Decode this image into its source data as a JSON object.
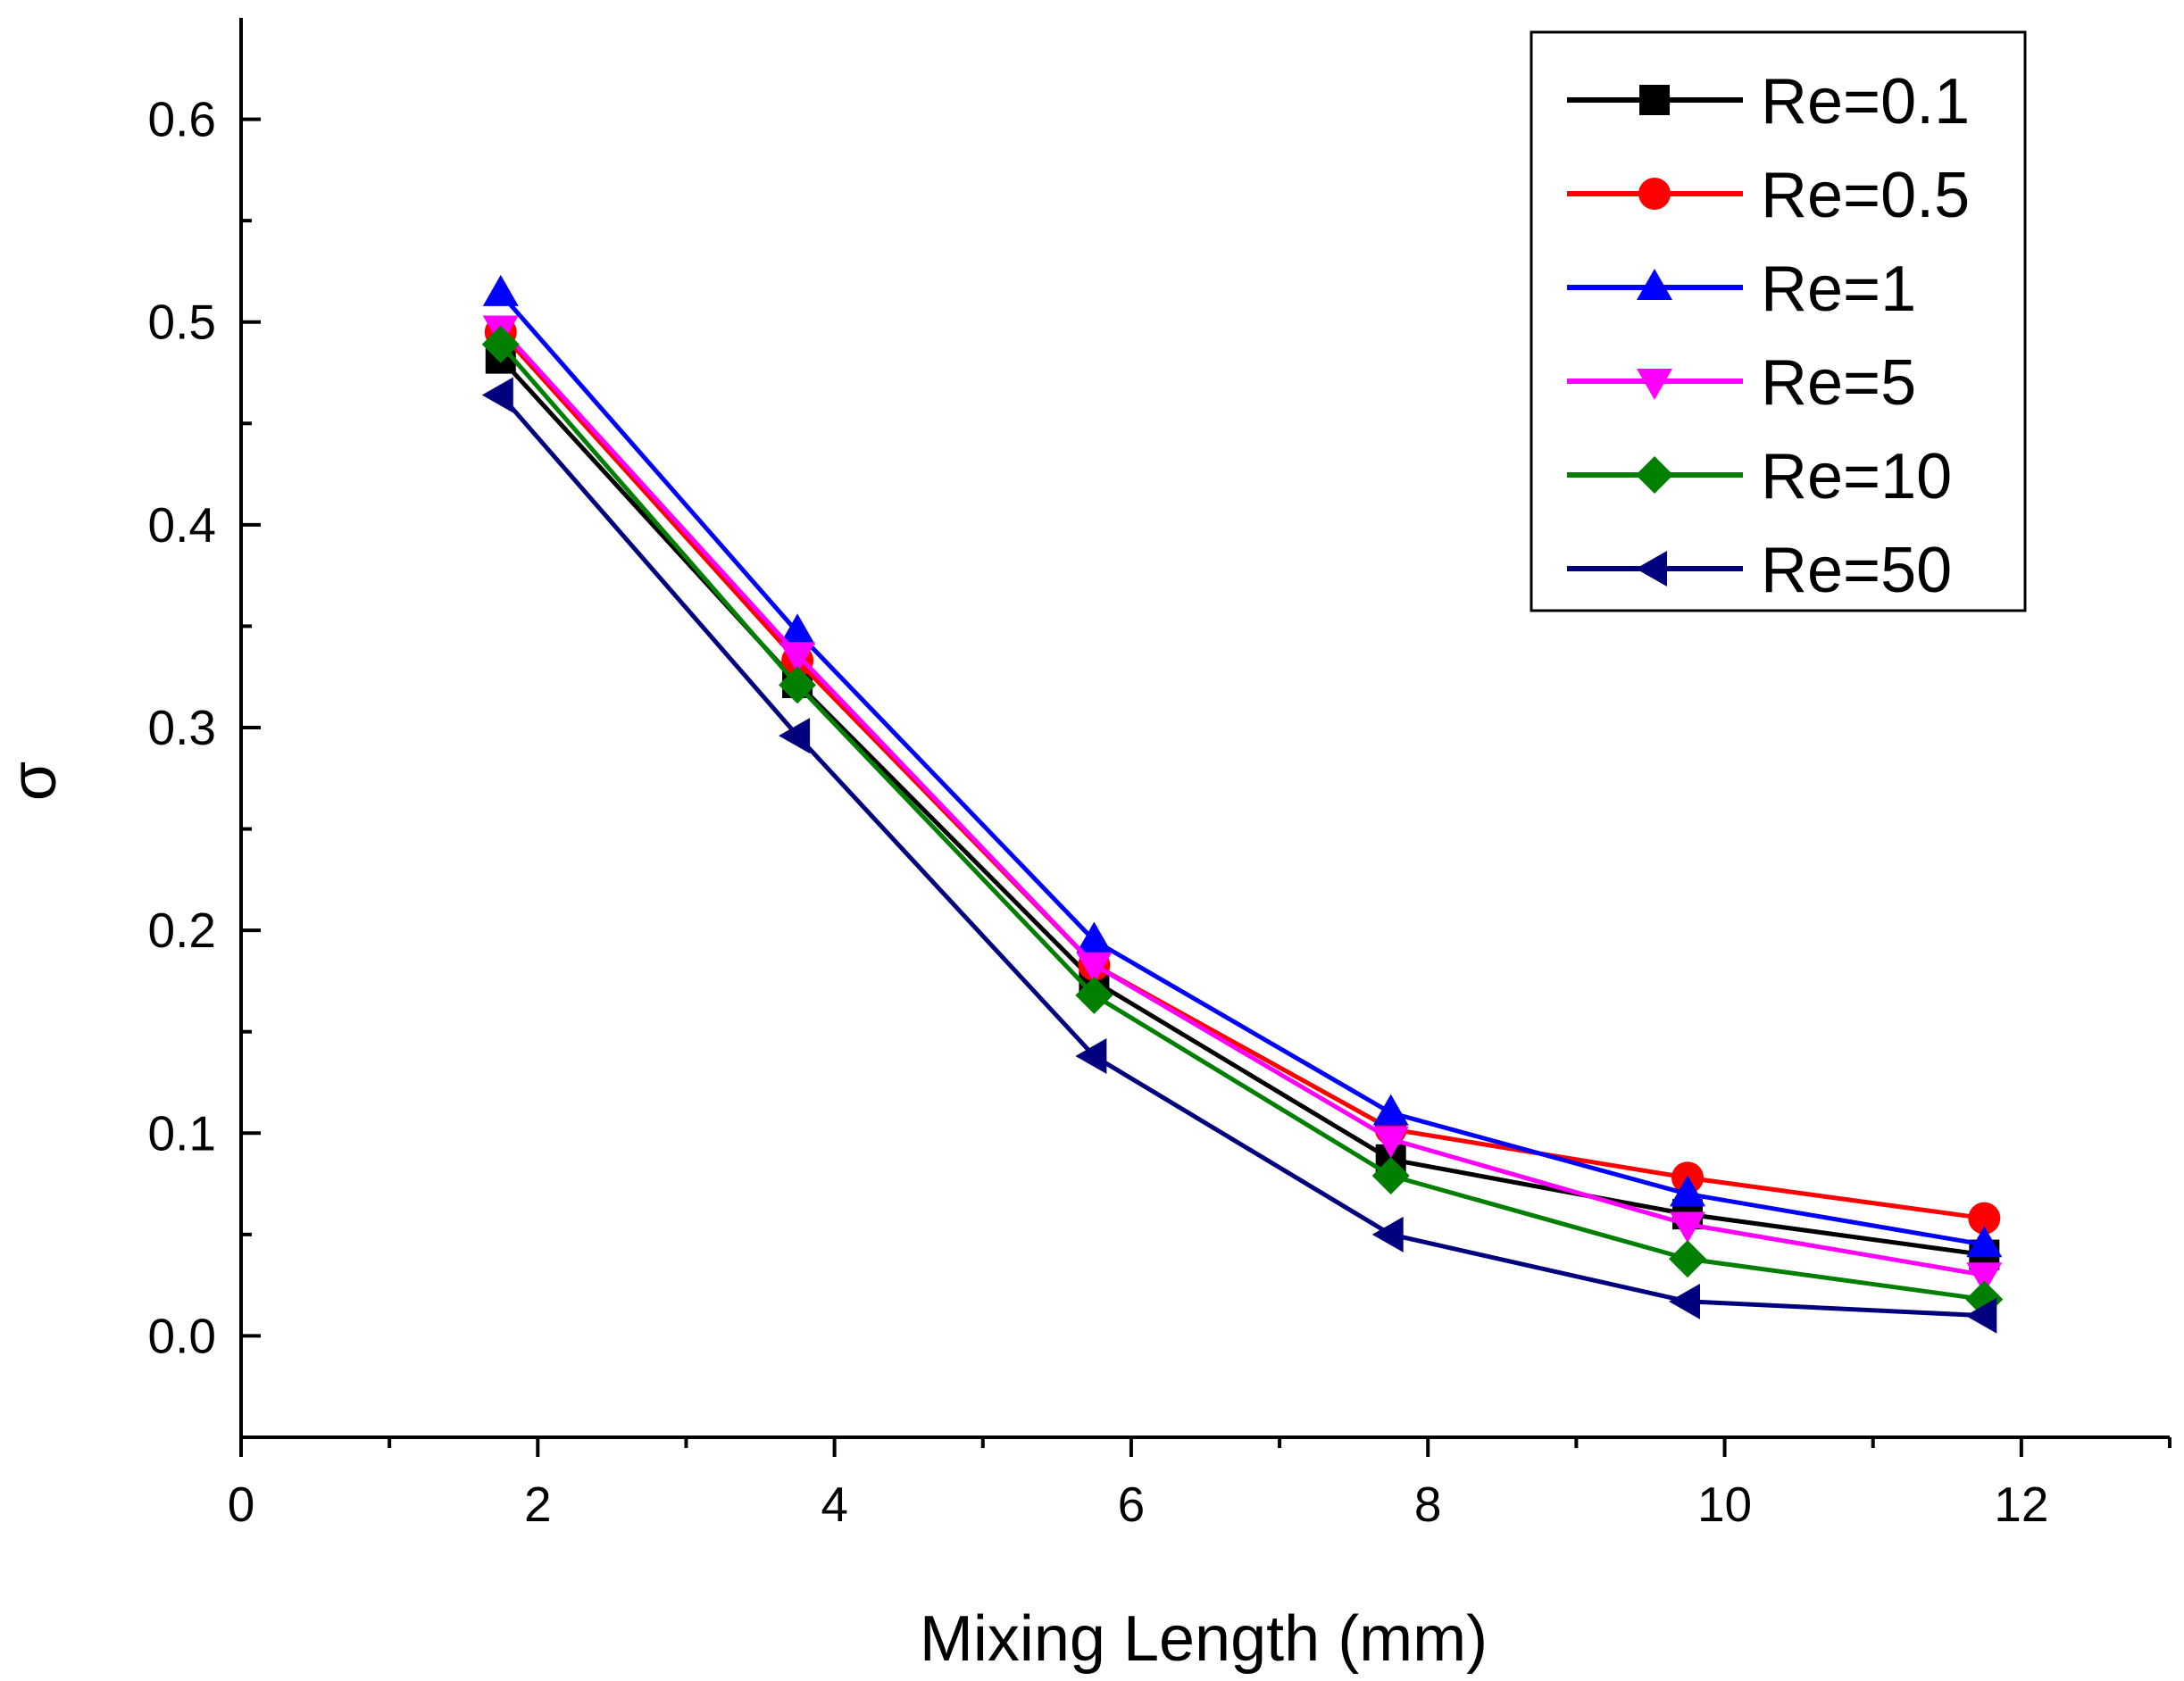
{
  "chart_data": {
    "type": "line",
    "title": "",
    "xlabel": "Mixing Length (mm)",
    "ylabel": "σ",
    "xlim": [
      0,
      13
    ],
    "ylim": [
      -0.05,
      0.65
    ],
    "x_ticks": [
      0,
      2,
      4,
      6,
      8,
      10,
      12
    ],
    "x_tick_labels": [
      "0",
      "2",
      "4",
      "6",
      "8",
      "10",
      "12"
    ],
    "y_ticks": [
      0.0,
      0.1,
      0.2,
      0.3,
      0.4,
      0.5,
      0.6
    ],
    "y_tick_labels": [
      "0.0",
      "0.1",
      "0.2",
      "0.3",
      "0.4",
      "0.5",
      "0.6"
    ],
    "grid": false,
    "legend_position": "top-right",
    "x": [
      1.75,
      3.75,
      5.75,
      7.75,
      9.75,
      11.75
    ],
    "series": [
      {
        "name": "Re=0.1",
        "color": "#000000",
        "marker": "square",
        "values": [
          0.482,
          0.322,
          0.175,
          0.087,
          0.06,
          0.04
        ]
      },
      {
        "name": "Re=0.5",
        "color": "#ff0000",
        "marker": "circle",
        "values": [
          0.495,
          0.333,
          0.183,
          0.102,
          0.078,
          0.058
        ]
      },
      {
        "name": "Re=1",
        "color": "#0000ff",
        "marker": "triangle-up",
        "values": [
          0.514,
          0.347,
          0.195,
          0.11,
          0.07,
          0.045
        ]
      },
      {
        "name": "Re=5",
        "color": "#ff00ff",
        "marker": "triangle-down",
        "values": [
          0.497,
          0.336,
          0.183,
          0.097,
          0.055,
          0.03
        ]
      },
      {
        "name": "Re=10",
        "color": "#007f00",
        "marker": "diamond",
        "values": [
          0.489,
          0.321,
          0.168,
          0.079,
          0.038,
          0.018
        ]
      },
      {
        "name": "Re=50",
        "color": "#00007f",
        "marker": "triangle-left",
        "values": [
          0.464,
          0.296,
          0.138,
          0.05,
          0.017,
          0.01
        ]
      }
    ]
  }
}
